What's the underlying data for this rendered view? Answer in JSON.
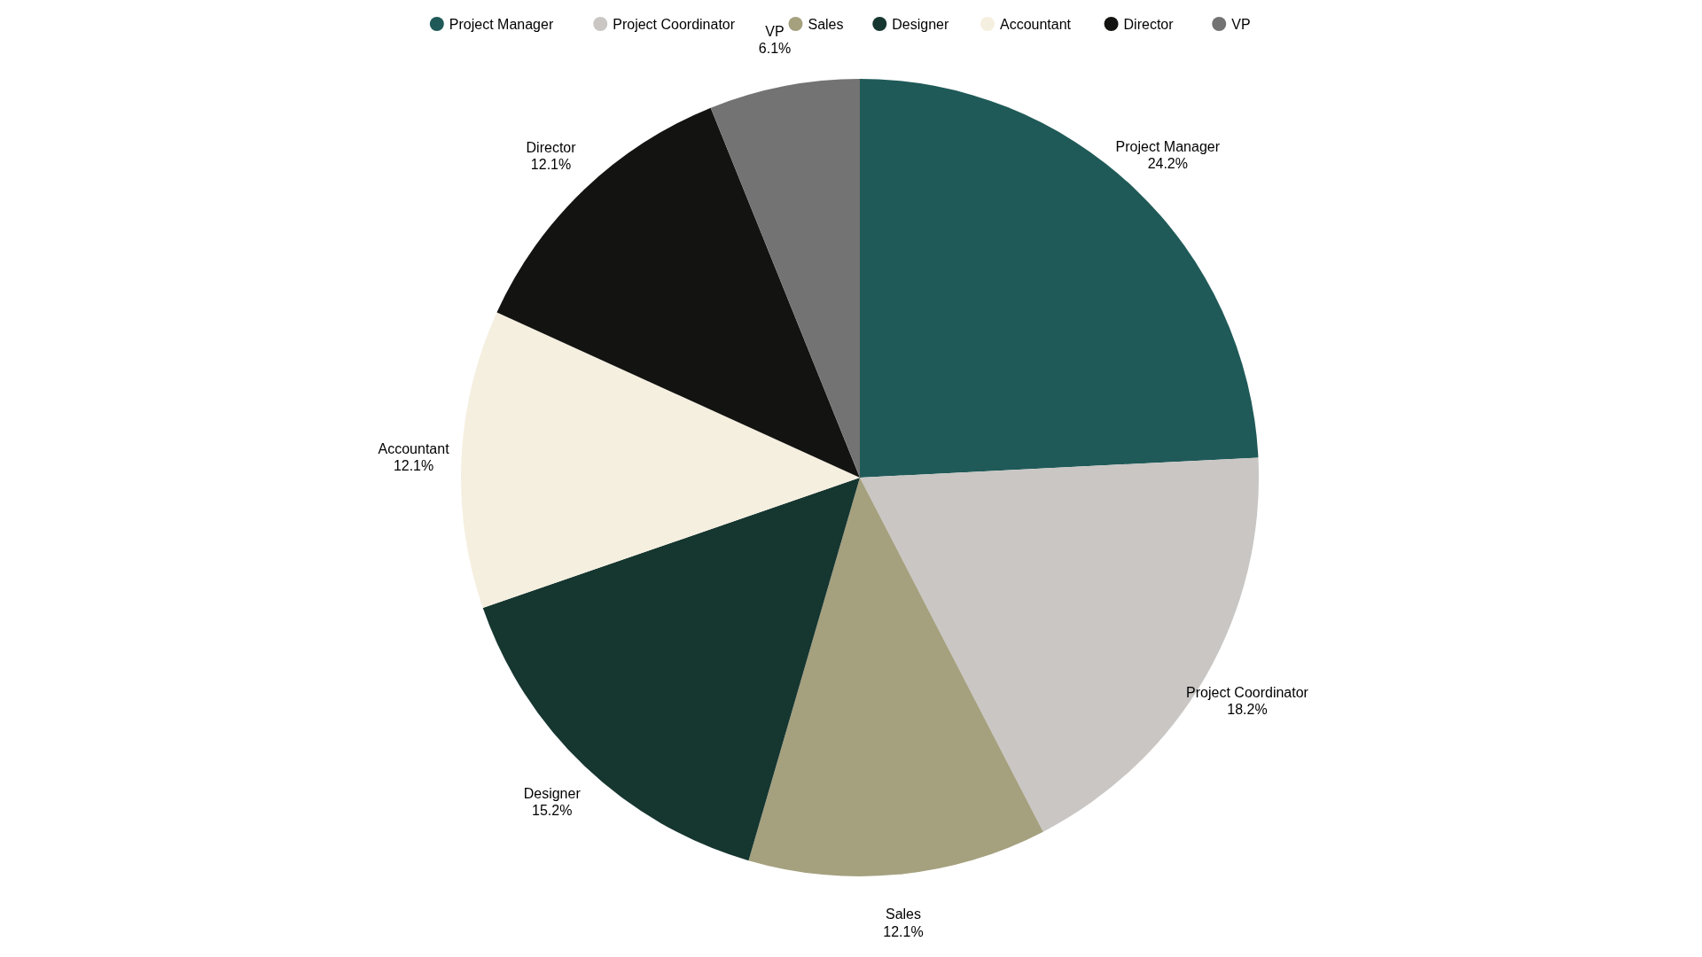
{
  "chart_data": {
    "type": "pie",
    "categories": [
      "Project Manager",
      "Project Coordinator",
      "Sales",
      "Designer",
      "Accountant",
      "Director",
      "VP"
    ],
    "values": [
      24.2,
      18.2,
      12.1,
      15.2,
      12.1,
      12.1,
      6.1
    ],
    "colors": [
      "#1f5a58",
      "#c9c6c4",
      "#a5a07e",
      "#163630",
      "#f5efe0",
      "#131311",
      "#737373"
    ],
    "value_labels": [
      "24.2%",
      "18.2%",
      "12.1%",
      "15.2%",
      "12.1%",
      "12.1%",
      "6.1%"
    ],
    "legend": "top"
  }
}
